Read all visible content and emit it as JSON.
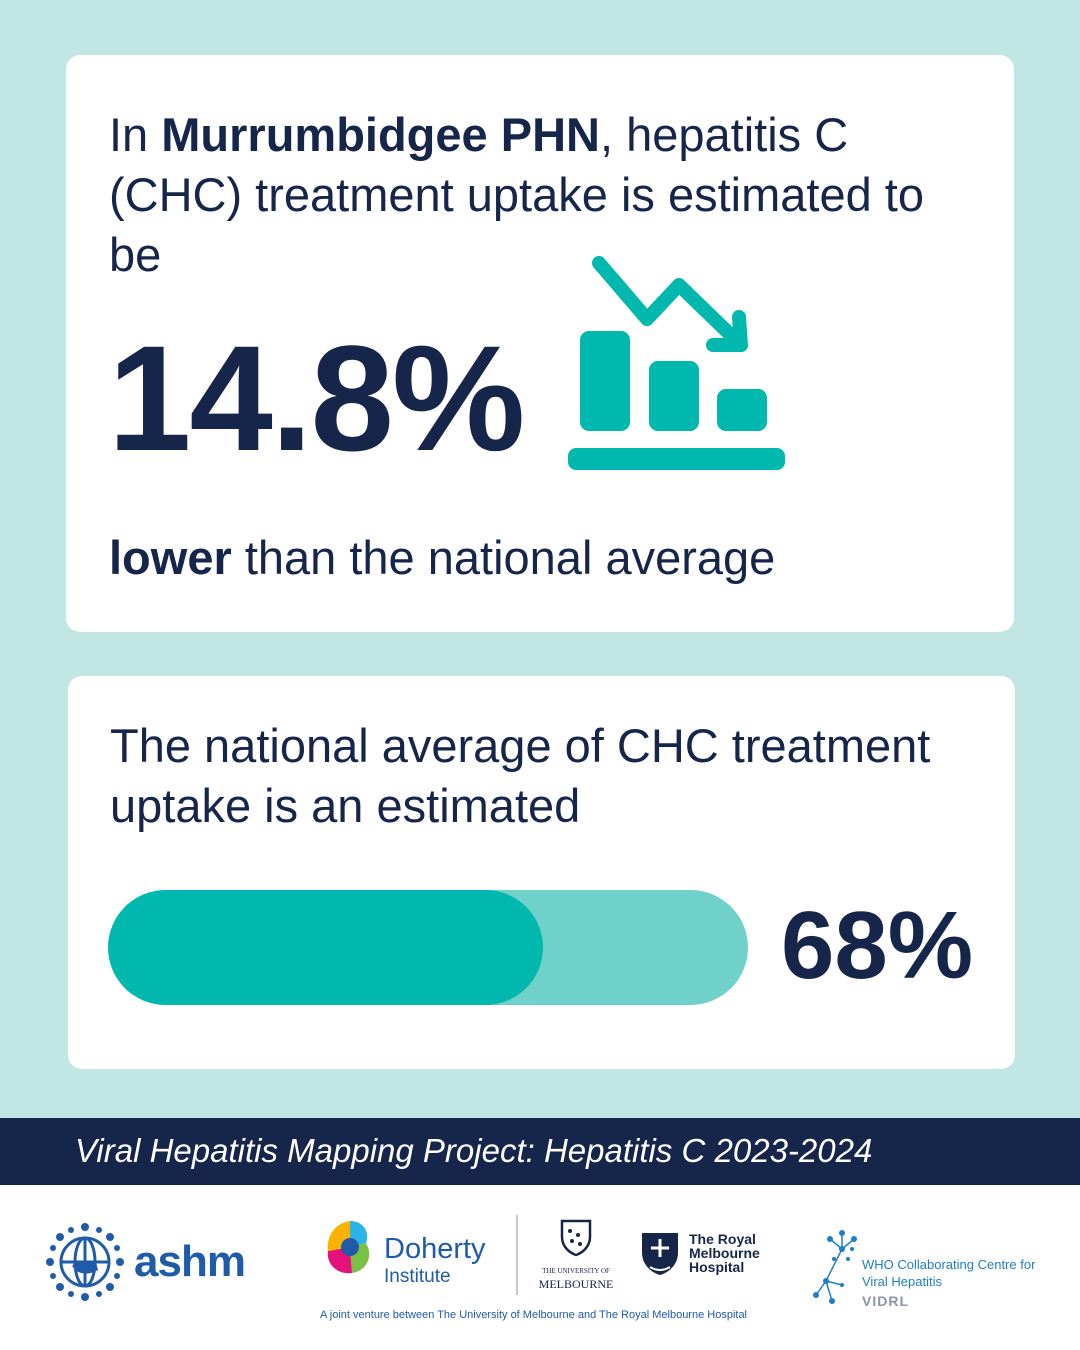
{
  "card1": {
    "intro_prefix": "In ",
    "region": "Murrumbidgee PHN",
    "intro_suffix": ", hepatitis C (CHC) treatment uptake is estimated to be",
    "percentage": "14.8%",
    "comparison_bold": "lower",
    "comparison_rest": " than the national average",
    "icon": "chart-trend-down-icon"
  },
  "card2": {
    "text": "The national average of CHC treatment uptake is an estimated",
    "percentage": "68%",
    "progress_fraction": 0.68
  },
  "banner": {
    "title": "Viral Hepatitis Mapping Project: Hepatitis C 2023-2024"
  },
  "footer": {
    "ashm": "ashm",
    "doherty_name": "Doherty",
    "doherty_sub": "Institute",
    "uom_line1": "THE UNIVERSITY OF",
    "uom_line2": "MELBOURNE",
    "rmh": "The Royal Melbourne Hospital",
    "who": "WHO Collaborating Centre for Viral Hepatitis",
    "vidrl": "VIDRL",
    "joint_venture": "A joint venture between The University of Melbourne and The Royal Melbourne Hospital"
  },
  "colors": {
    "navy": "#16254a",
    "teal": "#00b8ad",
    "teal_light": "#6fd1ca",
    "background": "#c1e6e3",
    "logo_blue": "#1f5ba8"
  }
}
